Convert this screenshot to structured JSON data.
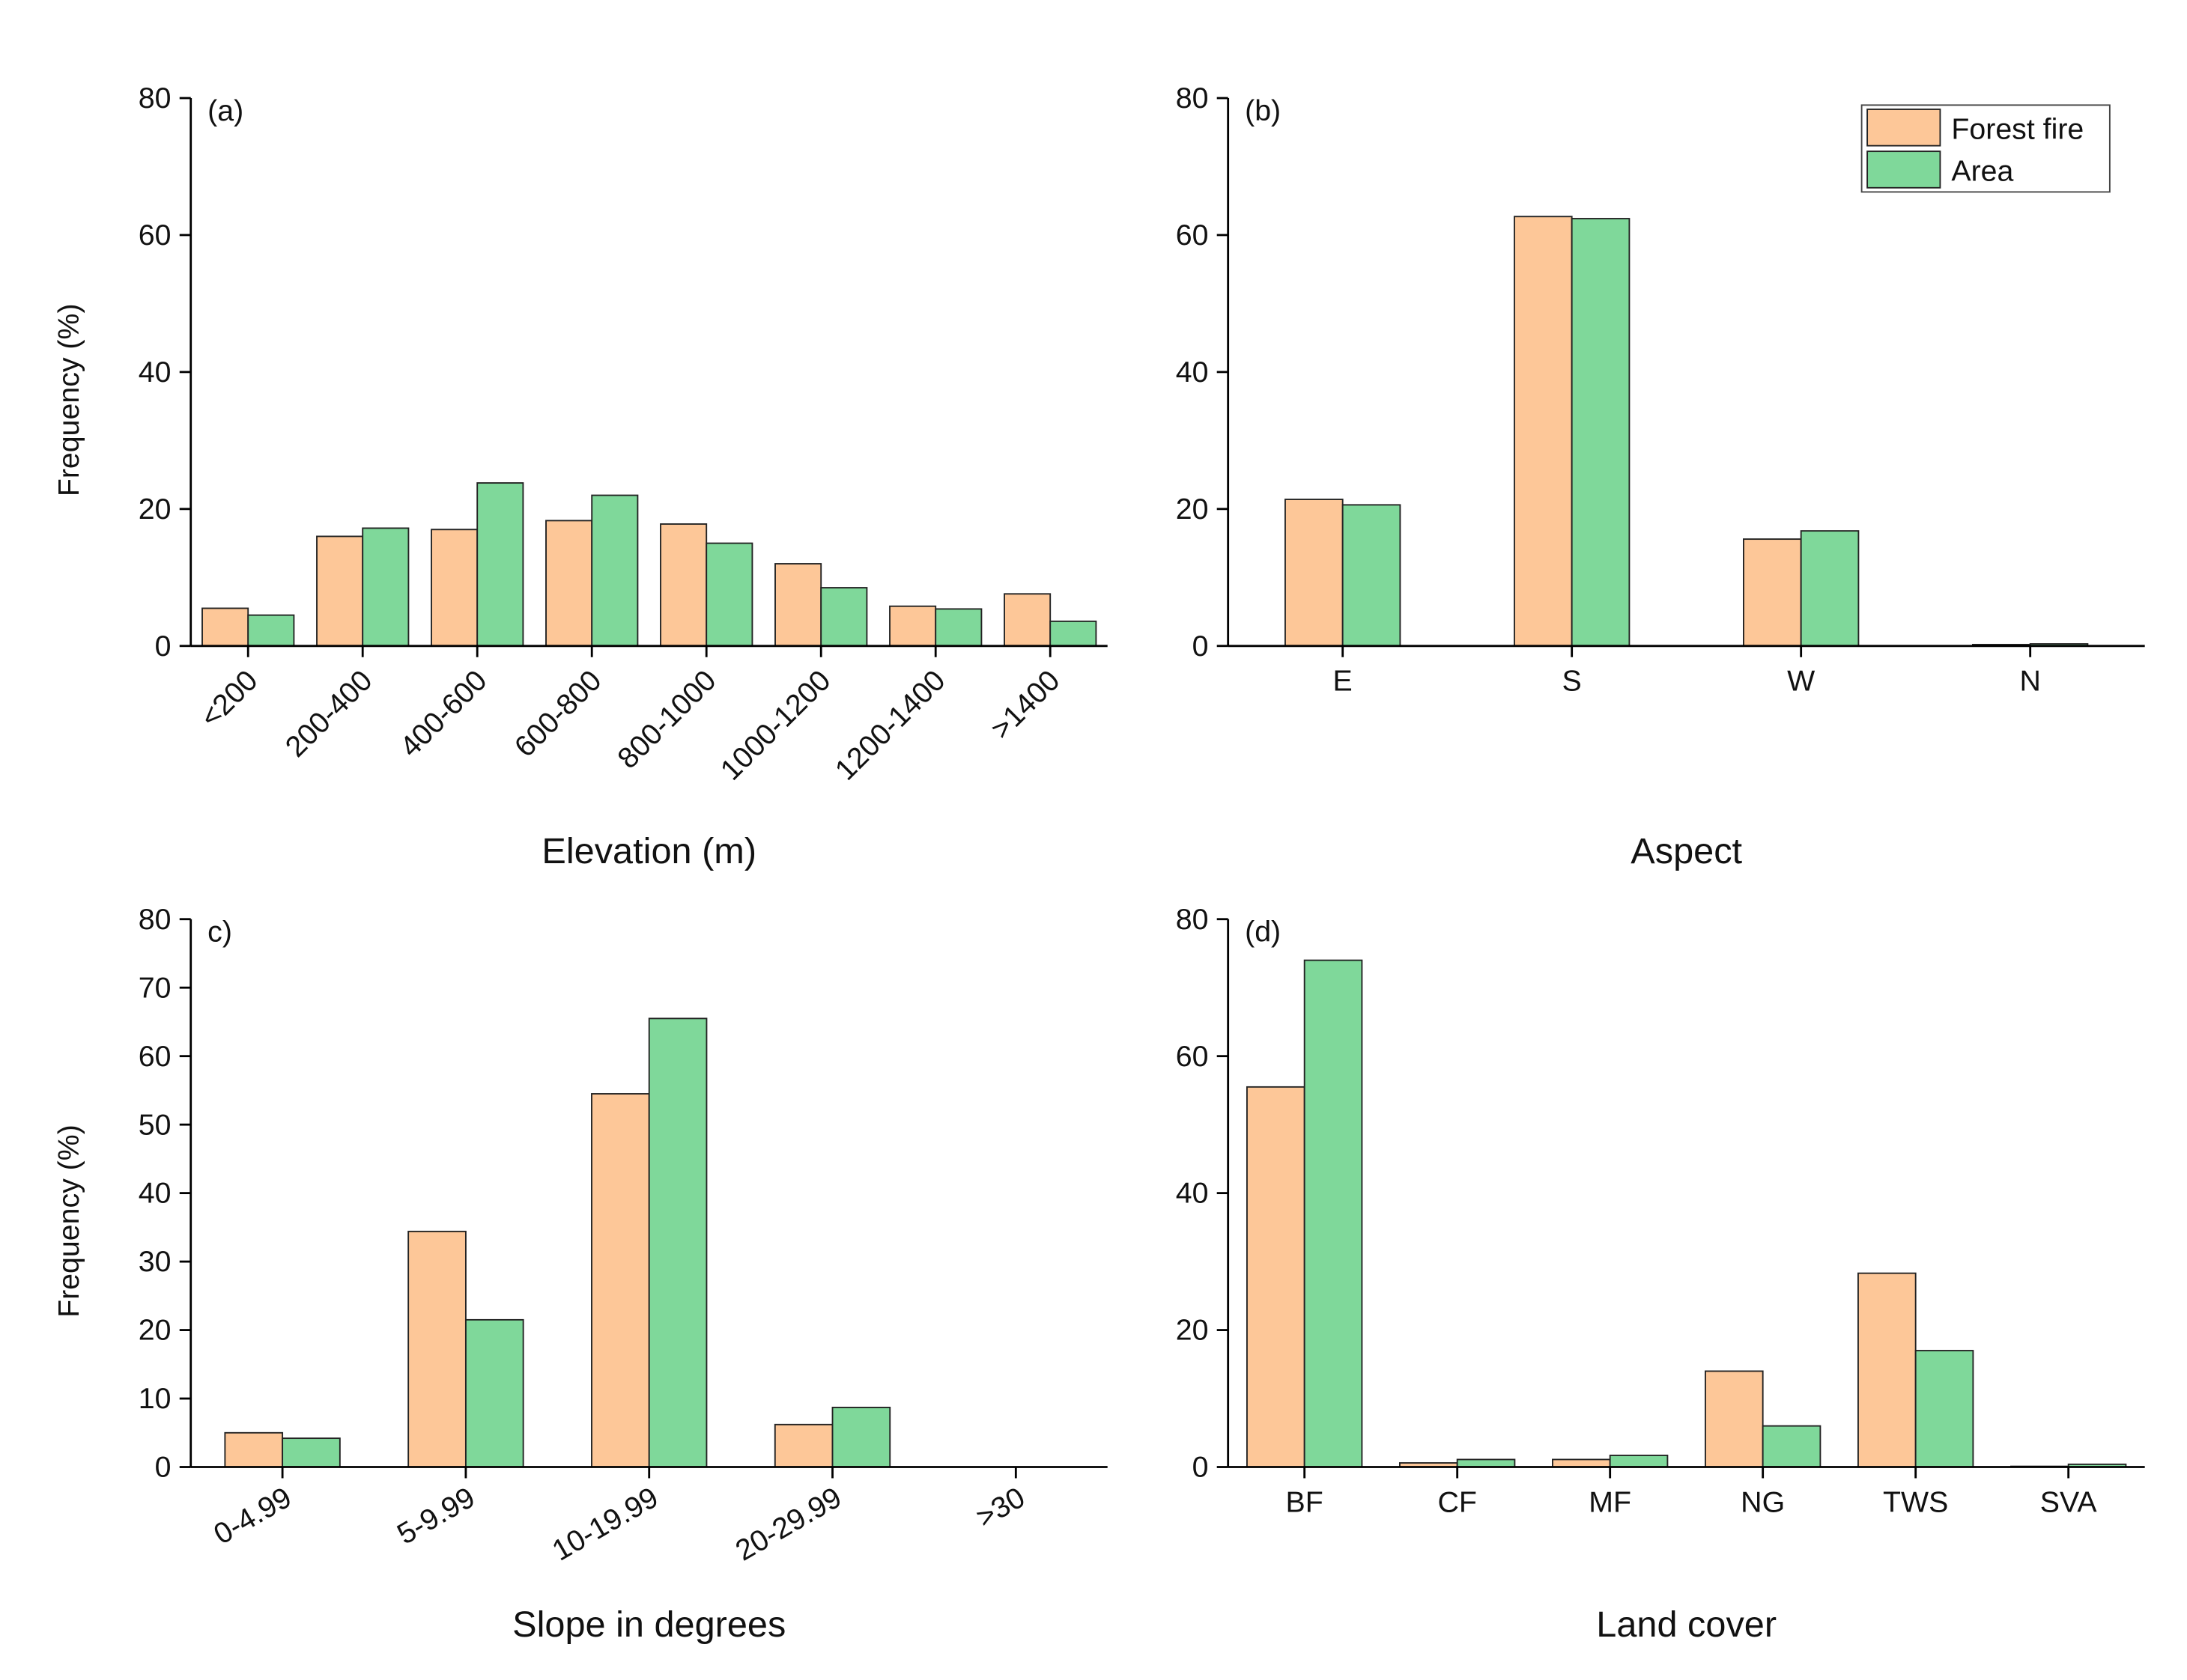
{
  "chart_data": [
    {
      "type": "bar",
      "annotation": "(a)",
      "x_label": "Elevation (m)",
      "y_label": "Frequency (%)",
      "categories": [
        "<200",
        "200-400",
        "400-600",
        "600-800",
        "800-1000",
        "1000-1200",
        "1200-1400",
        ">1400"
      ],
      "series": [
        {
          "color": "#fdc798",
          "values": [
            5.5,
            16,
            17,
            18.3,
            17.8,
            12,
            5.8,
            7.6
          ]
        },
        {
          "color": "#7fd89a",
          "values": [
            4.5,
            17.2,
            23.8,
            22,
            15,
            8.5,
            5.4,
            3.6
          ]
        }
      ],
      "ylim": [
        0,
        80
      ],
      "yticks": [
        0,
        20,
        40,
        60,
        80
      ]
    },
    {
      "type": "bar",
      "annotation": "(b)",
      "x_label": "Aspect",
      "legend": "upper right",
      "categories": [
        "E",
        "S",
        "W",
        "N"
      ],
      "series": [
        {
          "name": "Forest fire",
          "color": "#fdc798",
          "values": [
            21.4,
            62.7,
            15.6,
            0.2
          ]
        },
        {
          "name": "Area",
          "color": "#7fd89a",
          "values": [
            20.6,
            62.4,
            16.8,
            0.3
          ]
        }
      ],
      "ylim": [
        0,
        80
      ],
      "yticks": [
        0,
        20,
        40,
        60,
        80
      ]
    },
    {
      "type": "bar",
      "annotation": "c)",
      "x_label": "Slope in degrees",
      "y_label": "Frequency (%)",
      "categories": [
        "0-4.99",
        "5-9.99",
        "10-19.99",
        "20-29.99",
        ">30"
      ],
      "series": [
        {
          "color": "#fdc798",
          "values": [
            5,
            34.4,
            54.5,
            6.2,
            0
          ]
        },
        {
          "color": "#7fd89a",
          "values": [
            4.2,
            21.5,
            65.5,
            8.7,
            0
          ]
        }
      ],
      "ylim": [
        0,
        80
      ],
      "yticks": [
        0,
        10,
        20,
        30,
        40,
        50,
        60,
        70,
        80
      ]
    },
    {
      "type": "bar",
      "annotation": "(d)",
      "x_label": "Land cover",
      "categories": [
        "BF",
        "CF",
        "MF",
        "NG",
        "TWS",
        "SVA"
      ],
      "series": [
        {
          "color": "#fdc798",
          "values": [
            55.5,
            0.6,
            1.1,
            14,
            28.3,
            0.1
          ]
        },
        {
          "color": "#7fd89a",
          "values": [
            74,
            1.1,
            1.7,
            6,
            17,
            0.4
          ]
        }
      ],
      "ylim": [
        0,
        80
      ],
      "yticks": [
        0,
        20,
        40,
        60,
        80
      ]
    }
  ]
}
